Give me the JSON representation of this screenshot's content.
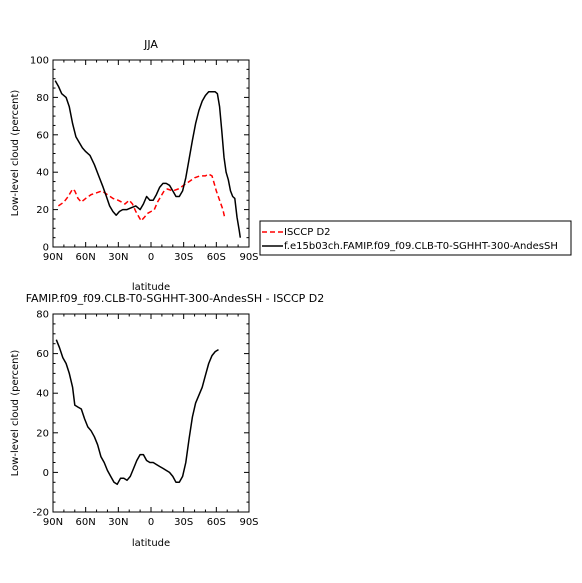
{
  "chart_data": [
    {
      "type": "line",
      "title": "JJA",
      "xlabel": "latitude",
      "ylabel": "Low-level cloud (percent)",
      "xlim": [
        90,
        -90
      ],
      "ylim": [
        0,
        100
      ],
      "x_ticks": [
        90,
        60,
        30,
        0,
        -30,
        -60,
        -90
      ],
      "x_tick_labels": [
        "90N",
        "60N",
        "30N",
        "0",
        "30S",
        "60S",
        "90S"
      ],
      "y_ticks": [
        0,
        20,
        40,
        60,
        80,
        100
      ],
      "y_tick_labels": [
        "0",
        "20",
        "40",
        "60",
        "80",
        "100"
      ],
      "legend_position": "right",
      "series": [
        {
          "name": "ISCCP D2",
          "color": "#ff0000",
          "style": "dashed",
          "points": [
            [
              85,
              22
            ],
            [
              80,
              24
            ],
            [
              76,
              27
            ],
            [
              72,
              31
            ],
            [
              70,
              30
            ],
            [
              67,
              26
            ],
            [
              64,
              24
            ],
            [
              60,
              26
            ],
            [
              55,
              28
            ],
            [
              50,
              29
            ],
            [
              45,
              30
            ],
            [
              40,
              28
            ],
            [
              35,
              26
            ],
            [
              30,
              25
            ],
            [
              27,
              24
            ],
            [
              24,
              23
            ],
            [
              20,
              25
            ],
            [
              17,
              23
            ],
            [
              14,
              19
            ],
            [
              11,
              16
            ],
            [
              9,
              14
            ],
            [
              6,
              16
            ],
            [
              3,
              18
            ],
            [
              0,
              19
            ],
            [
              -3,
              20
            ],
            [
              -6,
              24
            ],
            [
              -9,
              27
            ],
            [
              -12,
              30
            ],
            [
              -15,
              31
            ],
            [
              -20,
              30
            ],
            [
              -25,
              31
            ],
            [
              -30,
              33
            ],
            [
              -35,
              35
            ],
            [
              -40,
              37
            ],
            [
              -45,
              38
            ],
            [
              -50,
              38
            ],
            [
              -53,
              39
            ],
            [
              -56,
              38
            ],
            [
              -58,
              34
            ],
            [
              -60,
              30
            ],
            [
              -63,
              25
            ],
            [
              -66,
              20
            ],
            [
              -68,
              15
            ]
          ]
        },
        {
          "name": "f.e15b03ch.FAMIP.f09_f09.CLB-T0-SGHHT-300-AndesSH",
          "color": "#000000",
          "style": "solid",
          "points": [
            [
              88,
              89
            ],
            [
              85,
              86
            ],
            [
              82,
              82
            ],
            [
              78,
              80
            ],
            [
              75,
              75
            ],
            [
              72,
              66
            ],
            [
              69,
              59
            ],
            [
              66,
              56
            ],
            [
              63,
              53
            ],
            [
              60,
              51
            ],
            [
              56,
              49
            ],
            [
              52,
              44
            ],
            [
              48,
              38
            ],
            [
              44,
              32
            ],
            [
              41,
              27
            ],
            [
              38,
              22
            ],
            [
              35,
              19
            ],
            [
              32,
              17
            ],
            [
              29,
              19
            ],
            [
              26,
              20
            ],
            [
              22,
              20
            ],
            [
              18,
              21
            ],
            [
              14,
              22
            ],
            [
              10,
              20
            ],
            [
              7,
              23
            ],
            [
              4,
              27
            ],
            [
              1,
              25
            ],
            [
              -2,
              25
            ],
            [
              -5,
              28
            ],
            [
              -8,
              32
            ],
            [
              -11,
              34
            ],
            [
              -14,
              34
            ],
            [
              -17,
              33
            ],
            [
              -20,
              30
            ],
            [
              -23,
              27
            ],
            [
              -26,
              27
            ],
            [
              -29,
              30
            ],
            [
              -32,
              37
            ],
            [
              -35,
              47
            ],
            [
              -38,
              57
            ],
            [
              -41,
              66
            ],
            [
              -44,
              73
            ],
            [
              -47,
              78
            ],
            [
              -50,
              81
            ],
            [
              -53,
              83
            ],
            [
              -56,
              83
            ],
            [
              -59,
              83
            ],
            [
              -61,
              82
            ],
            [
              -63,
              75
            ],
            [
              -65,
              62
            ],
            [
              -67,
              48
            ],
            [
              -69,
              40
            ],
            [
              -71,
              36
            ],
            [
              -73,
              30
            ],
            [
              -75,
              27
            ],
            [
              -77,
              26
            ],
            [
              -79,
              16
            ],
            [
              -81,
              9
            ],
            [
              -82,
              5
            ]
          ]
        }
      ]
    },
    {
      "type": "line",
      "title": "FAMIP.f09_f09.CLB-T0-SGHHT-300-AndesSH - ISCCP D2",
      "xlabel": "latitude",
      "ylabel": "Low-level cloud (percent)",
      "xlim": [
        90,
        -90
      ],
      "ylim": [
        -20,
        80
      ],
      "x_ticks": [
        90,
        60,
        30,
        0,
        -30,
        -60,
        -90
      ],
      "x_tick_labels": [
        "90N",
        "60N",
        "30N",
        "0",
        "30S",
        "60S",
        "90S"
      ],
      "y_ticks": [
        -20,
        0,
        20,
        40,
        60,
        80
      ],
      "y_tick_labels": [
        "-20",
        "0",
        "20",
        "40",
        "60",
        "80"
      ],
      "series": [
        {
          "color": "#000000",
          "style": "solid",
          "points": [
            [
              87,
              67
            ],
            [
              84,
              63
            ],
            [
              81,
              58
            ],
            [
              78,
              55
            ],
            [
              75,
              50
            ],
            [
              72,
              43
            ],
            [
              70,
              34
            ],
            [
              67,
              33
            ],
            [
              64,
              32
            ],
            [
              61,
              27
            ],
            [
              58,
              23
            ],
            [
              55,
              21
            ],
            [
              52,
              18
            ],
            [
              49,
              14
            ],
            [
              46,
              8
            ],
            [
              43,
              5
            ],
            [
              40,
              1
            ],
            [
              37,
              -2
            ],
            [
              34,
              -5
            ],
            [
              31,
              -6
            ],
            [
              28,
              -3
            ],
            [
              25,
              -3
            ],
            [
              22,
              -4
            ],
            [
              19,
              -2
            ],
            [
              16,
              2
            ],
            [
              13,
              6
            ],
            [
              10,
              9
            ],
            [
              7,
              9
            ],
            [
              4,
              6
            ],
            [
              1,
              5
            ],
            [
              -2,
              5
            ],
            [
              -5,
              4
            ],
            [
              -8,
              3
            ],
            [
              -11,
              2
            ],
            [
              -14,
              1
            ],
            [
              -17,
              0
            ],
            [
              -20,
              -2
            ],
            [
              -23,
              -5
            ],
            [
              -26,
              -5
            ],
            [
              -29,
              -2
            ],
            [
              -32,
              5
            ],
            [
              -35,
              17
            ],
            [
              -38,
              28
            ],
            [
              -41,
              35
            ],
            [
              -44,
              39
            ],
            [
              -47,
              43
            ],
            [
              -50,
              49
            ],
            [
              -53,
              55
            ],
            [
              -56,
              59
            ],
            [
              -59,
              61
            ],
            [
              -62,
              62
            ]
          ]
        }
      ]
    }
  ]
}
